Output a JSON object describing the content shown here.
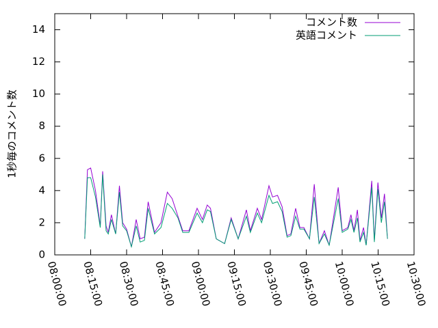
{
  "chart_data": {
    "type": "line",
    "y_label": "1秒毎のコメント数",
    "x": [
      "08:12:30",
      "08:13:40",
      "08:15:00",
      "08:17:00",
      "08:19:00",
      "08:20:00",
      "08:21:25",
      "08:22:20",
      "08:23:40",
      "08:25:25",
      "08:27:00",
      "08:28:20",
      "08:30:00",
      "08:32:00",
      "08:34:00",
      "08:35:40",
      "08:37:25",
      "08:39:00",
      "08:41:40",
      "08:44:20",
      "08:47:00",
      "08:49:00",
      "08:51:25",
      "08:53:25",
      "08:56:00",
      "08:59:25",
      "09:01:40",
      "09:03:40",
      "09:05:00",
      "09:07:25",
      "09:10:55",
      "09:13:40",
      "09:16:35",
      "09:20:00",
      "09:21:40",
      "09:24:35",
      "09:26:20",
      "09:29:25",
      "09:30:55",
      "09:33:00",
      "09:34:55",
      "09:37:00",
      "09:38:35",
      "09:40:35",
      "09:42:20",
      "09:44:00",
      "09:46:20",
      "09:48:20",
      "09:50:20",
      "09:52:35",
      "09:54:35",
      "09:58:20",
      "10:00:00",
      "10:02:20",
      "10:03:40",
      "10:04:55",
      "10:06:20",
      "10:07:25",
      "10:08:55",
      "10:10:00",
      "10:12:20",
      "10:13:25",
      "10:14:55",
      "10:16:20",
      "10:17:40",
      "10:18:55"
    ],
    "series": [
      {
        "name": "コメント数",
        "color": "#9400d3",
        "values": [
          1.0,
          5.3,
          5.4,
          4.0,
          1.8,
          5.2,
          1.8,
          1.4,
          2.5,
          1.3,
          4.3,
          2.0,
          1.6,
          0.5,
          2.2,
          1.0,
          1.1,
          3.3,
          1.4,
          2.0,
          3.9,
          3.5,
          2.4,
          1.5,
          1.5,
          2.9,
          2.2,
          3.1,
          2.9,
          1.0,
          0.7,
          2.3,
          1.0,
          2.8,
          1.5,
          2.9,
          2.2,
          4.3,
          3.6,
          3.7,
          3.0,
          1.2,
          1.3,
          2.9,
          1.7,
          1.7,
          1.0,
          4.4,
          0.7,
          1.5,
          0.6,
          4.2,
          1.5,
          1.7,
          2.5,
          1.5,
          2.8,
          0.9,
          1.7,
          0.6,
          4.6,
          0.9,
          4.5,
          2.3,
          3.8,
          1.0
        ]
      },
      {
        "name": "英語コメント",
        "color": "#009e73",
        "values": [
          1.0,
          4.8,
          4.8,
          3.6,
          1.7,
          5.0,
          1.5,
          1.3,
          2.2,
          1.3,
          3.9,
          1.8,
          1.5,
          0.5,
          1.8,
          0.8,
          0.9,
          2.9,
          1.3,
          1.7,
          3.2,
          2.9,
          2.3,
          1.4,
          1.4,
          2.6,
          2.0,
          2.8,
          2.7,
          1.0,
          0.7,
          2.2,
          1.0,
          2.4,
          1.4,
          2.6,
          2.0,
          3.7,
          3.2,
          3.3,
          2.7,
          1.1,
          1.2,
          2.4,
          1.6,
          1.6,
          1.0,
          3.6,
          0.7,
          1.3,
          0.6,
          3.5,
          1.4,
          1.6,
          2.2,
          1.4,
          2.3,
          0.8,
          1.4,
          0.6,
          4.2,
          0.8,
          4.1,
          2.0,
          3.3,
          1.0
        ]
      }
    ],
    "xlim": [
      "08:00:00",
      "10:30:00"
    ],
    "xticks": [
      "08:00:00",
      "08:15:00",
      "08:30:00",
      "08:45:00",
      "09:00:00",
      "09:15:00",
      "09:30:00",
      "09:45:00",
      "10:00:00",
      "10:15:00",
      "10:30:00"
    ],
    "ylim": [
      0,
      15
    ],
    "yticks": [
      0,
      2,
      4,
      6,
      8,
      10,
      12,
      14
    ],
    "legend": "top-right"
  }
}
